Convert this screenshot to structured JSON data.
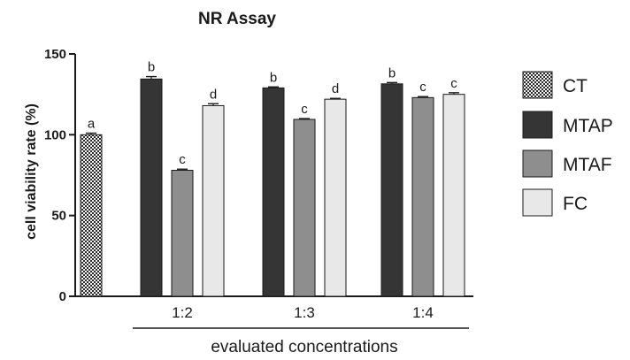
{
  "chart_data": {
    "type": "bar",
    "title": "NR Assay",
    "ylabel": "cell viability rate (%)",
    "xlabel": "evaluated concentrations",
    "ylim": [
      0,
      150
    ],
    "yticks": [
      0,
      50,
      100,
      150
    ],
    "grid": false,
    "legend_position": "right",
    "groups": [
      {
        "label": "",
        "bars": [
          {
            "series": "CT",
            "value": 100,
            "error": 1.0,
            "sig": "a"
          }
        ]
      },
      {
        "label": "1:2",
        "bars": [
          {
            "series": "MTAP",
            "value": 134.5,
            "error": 1.5,
            "sig": "b"
          },
          {
            "series": "MTAF",
            "value": 78,
            "error": 0.7,
            "sig": "c"
          },
          {
            "series": "FC",
            "value": 118,
            "error": 1.2,
            "sig": "d"
          }
        ]
      },
      {
        "label": "1:3",
        "bars": [
          {
            "series": "MTAP",
            "value": 129,
            "error": 0.6,
            "sig": "b"
          },
          {
            "series": "MTAF",
            "value": 109.5,
            "error": 0.5,
            "sig": "c"
          },
          {
            "series": "FC",
            "value": 122,
            "error": 0.5,
            "sig": "d"
          }
        ]
      },
      {
        "label": "1:4",
        "bars": [
          {
            "series": "MTAP",
            "value": 131.5,
            "error": 0.8,
            "sig": "b"
          },
          {
            "series": "MTAF",
            "value": 123,
            "error": 0.6,
            "sig": "c"
          },
          {
            "series": "FC",
            "value": 125,
            "error": 1.0,
            "sig": "c"
          }
        ]
      }
    ],
    "series": [
      {
        "name": "CT",
        "color": "#555555",
        "pattern": "checker"
      },
      {
        "name": "MTAP",
        "color": "#353535"
      },
      {
        "name": "MTAF",
        "color": "#8e8e8e"
      },
      {
        "name": "FC",
        "color": "#e8e8e8"
      }
    ]
  }
}
